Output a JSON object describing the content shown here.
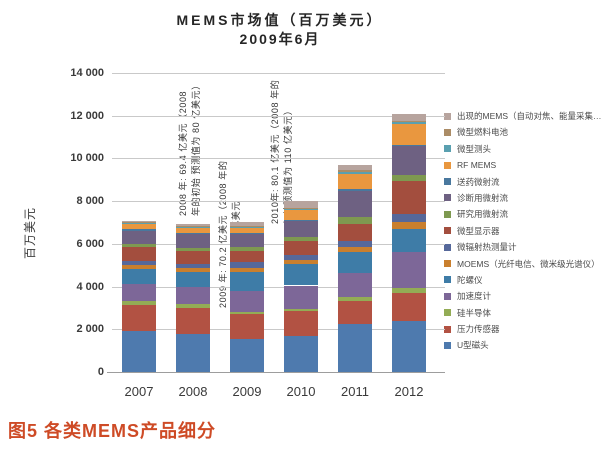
{
  "figure": {
    "title_line1": "MEMS市场值（百万美元）",
    "title_line2": "2009年6月",
    "caption": "图5  各类MEMS产品细分",
    "caption_color": "#CE4B26"
  },
  "y_axis": {
    "label": "百万美元",
    "tick_labels": [
      "14 000",
      "12 000",
      "10 000",
      "8 000",
      "6 000",
      "4 000",
      "2 000",
      "0"
    ]
  },
  "annotations": [
    {
      "line1": "2008 年: 69.4 亿美元（2008",
      "line2": "年的初始 预测值为 80 亿美元）"
    },
    {
      "line1": "2009 年: 70.2 亿美元（2008 年的",
      "line2": "初始 预测值为 93 亿美元"
    },
    {
      "line1": "2010年: 80.1 亿美元（2008 年的",
      "line2": "初始预测值为 110 亿美元）"
    }
  ],
  "chart_data": {
    "type": "bar",
    "stacked": true,
    "title": "MEMS市场值（百万美元）2009年6月",
    "ylabel": "百万美元",
    "ylim": [
      0,
      14000
    ],
    "ytick_step": 2000,
    "grid": true,
    "legend_position": "right",
    "categories": [
      "2007",
      "2008",
      "2009",
      "2010",
      "2011",
      "2012"
    ],
    "series": [
      {
        "name": "U型磁头",
        "color": "#4E7AAE",
        "values": [
          1900,
          1780,
          1550,
          1700,
          2250,
          2400
        ]
      },
      {
        "name": "压力传感器",
        "color": "#B25243",
        "values": [
          1250,
          1220,
          1170,
          1140,
          1060,
          1280
        ]
      },
      {
        "name": "硅半导体",
        "color": "#93AC55",
        "values": [
          190,
          185,
          80,
          110,
          190,
          235
        ]
      },
      {
        "name": "加速度计",
        "color": "#7D6798",
        "values": [
          795,
          790,
          1015,
          1100,
          1140,
          1700
        ]
      },
      {
        "name": "陀螺仪",
        "color": "#3E7CA7",
        "values": [
          705,
          700,
          860,
          1000,
          965,
          1095
        ]
      },
      {
        "name": "MOEMS（光纤电信、微米级光谱仪）",
        "color": "#C97F2E",
        "values": [
          190,
          185,
          190,
          200,
          235,
          310
        ]
      },
      {
        "name": "微辐射热测量计",
        "color": "#56689A",
        "values": [
          190,
          185,
          280,
          235,
          310,
          390
        ]
      },
      {
        "name": "微型显示器",
        "color": "#A34E3E",
        "values": [
          640,
          635,
          500,
          655,
          785,
          1520
        ]
      },
      {
        "name": "研究用微射流",
        "color": "#7E9950",
        "values": [
          110,
          110,
          200,
          200,
          310,
          315
        ]
      },
      {
        "name": "诊断用微射流",
        "color": "#6E6182",
        "values": [
          655,
          650,
          625,
          735,
          1250,
          1325
        ]
      },
      {
        "name": "送药微射流",
        "color": "#49789E",
        "values": [
          50,
          50,
          50,
          60,
          80,
          80
        ]
      },
      {
        "name": "RF MEMS",
        "color": "#E9973F",
        "values": [
          260,
          260,
          235,
          450,
          700,
          940
        ]
      },
      {
        "name": "微型测头",
        "color": "#5AA0B0",
        "values": [
          50,
          50,
          50,
          60,
          110,
          110
        ]
      },
      {
        "name": "微型燃料电池",
        "color": "#AB8C66",
        "values": [
          30,
          30,
          35,
          45,
          55,
          60
        ]
      },
      {
        "name": "出现的MEMS（自动对焦、能量采集…）",
        "color": "#B7A49E",
        "values": [
          50,
          110,
          180,
          320,
          230,
          310
        ]
      }
    ]
  }
}
